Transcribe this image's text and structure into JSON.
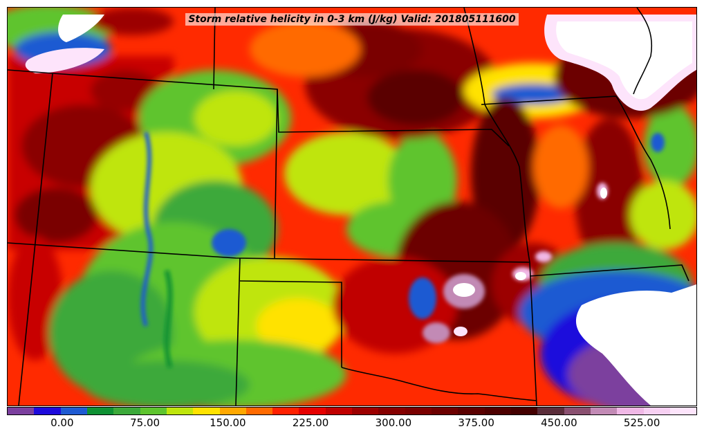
{
  "map": {
    "title": "Storm relative helicity in 0-3 km (J/kg) Valid: 201805111600",
    "field": "Storm relative helicity in 0-3 km",
    "units": "J/kg",
    "valid_time": "201805111600"
  },
  "colorbar": {
    "min": -50,
    "max": 575,
    "step": 25,
    "colors": [
      "#7b3f9e",
      "#1d0adc",
      "#1e5ad2",
      "#0e9133",
      "#3ca93a",
      "#5ec42e",
      "#bfe50c",
      "#ffe200",
      "#ffa800",
      "#ff6a00",
      "#ff2000",
      "#e50000",
      "#c00000",
      "#9c0000",
      "#850000",
      "#7a0000",
      "#6c0000",
      "#5a0000",
      "#4d0000",
      "#440000",
      "#5a2d3a",
      "#8a5070",
      "#c28ab5",
      "#f0b8e6",
      "#f7d0f2",
      "#fde4fb"
    ],
    "tick_labels": [
      "0.00",
      "75.00",
      "150.00",
      "225.00",
      "300.00",
      "375.00",
      "450.00",
      "525.00"
    ],
    "tick_values": [
      0,
      75,
      150,
      225,
      300,
      375,
      450,
      525
    ]
  }
}
